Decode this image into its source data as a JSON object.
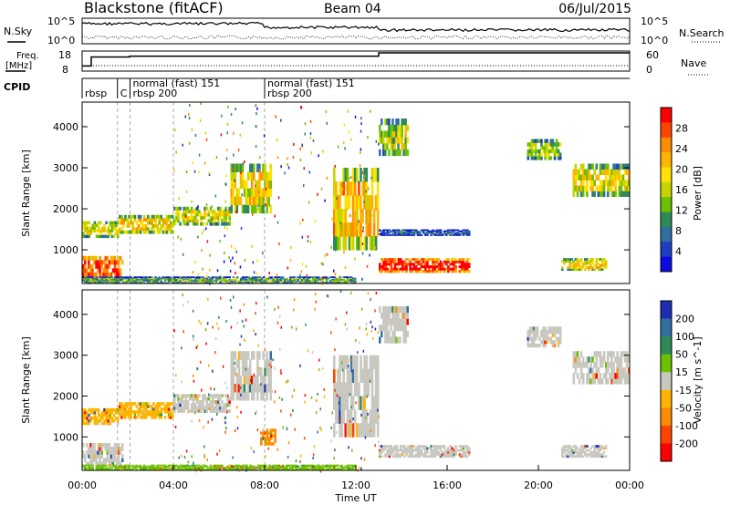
{
  "header": {
    "station": "Blackstone (fitACF)",
    "beam": "Beam 04",
    "date": "06/Jul/2015"
  },
  "chart_data": [
    {
      "type": "line",
      "panel": "noise-search",
      "left_label": "N.Sky",
      "right_label": "N.Search",
      "left_ticks": [
        "10^5",
        "10^0"
      ],
      "right_ticks": [
        "10^5",
        "10^0"
      ]
    },
    {
      "type": "line",
      "panel": "frequency-nave",
      "left_label_line1": "Freq.",
      "left_label_line2": "[MHz]",
      "right_label": "Nave",
      "left_ticks": [
        "18",
        "8"
      ],
      "right_ticks": [
        "60",
        "0"
      ],
      "freq_steps": [
        {
          "x0": 0.0,
          "x1": 0.4,
          "level": 0.2
        },
        {
          "x0": 0.4,
          "x1": 2.08,
          "level": 0.75
        },
        {
          "x0": 2.08,
          "x1": 8.0,
          "level": 0.8
        },
        {
          "x0": 8.0,
          "x1": 13.0,
          "level": 0.8
        },
        {
          "x0": 13.0,
          "x1": 24.0,
          "level": 1.0
        }
      ]
    },
    {
      "type": "table",
      "panel": "cpid",
      "label": "CPID",
      "entries": [
        {
          "time": 0.0,
          "text": "rbsp",
          "row": 2
        },
        {
          "time": 1.55,
          "text": "C",
          "row": 2
        },
        {
          "time": 2.1,
          "text": "normal (fast) 151",
          "row": 1
        },
        {
          "time": 2.1,
          "text": "rbsp 200",
          "row": 2
        },
        {
          "time": 8.0,
          "text": "normal (fast)  151",
          "row": 1
        },
        {
          "time": 8.0,
          "text": "rbsp 200",
          "row": 2
        }
      ],
      "boundaries": [
        0.0,
        1.55,
        2.1,
        8.0
      ]
    },
    {
      "type": "heatmap",
      "panel": "power",
      "title": "Power [dB]",
      "ylabel": "Slant Range [km]",
      "ylim": [
        180,
        4600
      ],
      "yticks": [
        1000,
        2000,
        3000,
        4000
      ],
      "colorbar_ticks": [
        "28",
        "24",
        "20",
        "16",
        "12",
        "8",
        "4"
      ],
      "colorbar_colors": [
        "#ff0000",
        "#ff4400",
        "#ff8c00",
        "#ffb400",
        "#ffe000",
        "#c8d400",
        "#6cc000",
        "#2e8b57",
        "#2f6fa0",
        "#1d3fc0",
        "#0a0ae0"
      ],
      "bands": [
        {
          "x0": 0.0,
          "x1": 1.6,
          "y0": 1300,
          "y1": 1700,
          "level": 0.55
        },
        {
          "x0": 1.6,
          "x1": 4.0,
          "y0": 1400,
          "y1": 1850,
          "level": 0.6
        },
        {
          "x0": 4.0,
          "x1": 6.5,
          "y0": 1600,
          "y1": 2050,
          "level": 0.55
        },
        {
          "x0": 6.5,
          "x1": 8.3,
          "y0": 1900,
          "y1": 3100,
          "level": 0.6
        },
        {
          "x0": 0.0,
          "x1": 1.8,
          "y0": 250,
          "y1": 850,
          "level": 0.85
        },
        {
          "x0": 11.0,
          "x1": 13.0,
          "y0": 1000,
          "y1": 3000,
          "level": 0.65
        },
        {
          "x0": 13.0,
          "x1": 17.0,
          "y0": 450,
          "y1": 800,
          "level": 0.95
        },
        {
          "x0": 13.0,
          "x1": 17.0,
          "y0": 1350,
          "y1": 1500,
          "level": 0.2
        },
        {
          "x0": 13.0,
          "x1": 14.3,
          "y0": 3300,
          "y1": 4200,
          "level": 0.5
        },
        {
          "x0": 21.5,
          "x1": 24.0,
          "y0": 2300,
          "y1": 3100,
          "level": 0.55
        },
        {
          "x0": 19.5,
          "x1": 21.0,
          "y0": 3200,
          "y1": 3700,
          "level": 0.45
        },
        {
          "x0": 21.0,
          "x1": 23.0,
          "y0": 500,
          "y1": 800,
          "level": 0.6
        },
        {
          "x0": 0.0,
          "x1": 12.0,
          "y0": 180,
          "y1": 350,
          "level": 0.35
        }
      ]
    },
    {
      "type": "heatmap",
      "panel": "velocity",
      "title": "Velocity [m s^-1]",
      "ylabel": "Slant Range [km]",
      "xlabel": "Time UT",
      "ylim": [
        180,
        4600
      ],
      "yticks": [
        1000,
        2000,
        3000,
        4000
      ],
      "xticks": [
        "00:00",
        "04:00",
        "08:00",
        "12:00",
        "16:00",
        "20:00",
        "00:00"
      ],
      "xlim": [
        0,
        24
      ],
      "colorbar_ticks": [
        "200",
        "100",
        "50",
        "15",
        "-15",
        "-50",
        "-100",
        "-200"
      ],
      "colorbar_colors": [
        "#1d2fb0",
        "#2f6fa0",
        "#2e8b57",
        "#6cc000",
        "#c8c8c0",
        "#ffb400",
        "#ff8c00",
        "#ff4400",
        "#ff0000"
      ],
      "bands": [
        {
          "x0": 0.0,
          "x1": 1.6,
          "y0": 1300,
          "y1": 1700,
          "color": "#ffb400"
        },
        {
          "x0": 1.6,
          "x1": 4.0,
          "y0": 1450,
          "y1": 1850,
          "color": "#ffb400"
        },
        {
          "x0": 4.0,
          "x1": 6.5,
          "y0": 1600,
          "y1": 2050,
          "color": "#c8c8c0"
        },
        {
          "x0": 6.5,
          "x1": 8.3,
          "y0": 1900,
          "y1": 3100,
          "color": "#c8c8c0"
        },
        {
          "x0": 0.0,
          "x1": 1.8,
          "y0": 300,
          "y1": 850,
          "color": "#c8c8c0"
        },
        {
          "x0": 11.0,
          "x1": 13.0,
          "y0": 1000,
          "y1": 3000,
          "color": "#c8c8c0"
        },
        {
          "x0": 13.0,
          "x1": 17.0,
          "y0": 500,
          "y1": 800,
          "color": "#c8c8c0"
        },
        {
          "x0": 13.0,
          "x1": 14.3,
          "y0": 3300,
          "y1": 4200,
          "color": "#c8c8c0"
        },
        {
          "x0": 21.5,
          "x1": 24.0,
          "y0": 2300,
          "y1": 3100,
          "color": "#c8c8c0"
        },
        {
          "x0": 19.5,
          "x1": 21.0,
          "y0": 3200,
          "y1": 3700,
          "color": "#c8c8c0"
        },
        {
          "x0": 21.0,
          "x1": 23.0,
          "y0": 500,
          "y1": 800,
          "color": "#c8c8c0"
        },
        {
          "x0": 7.8,
          "x1": 8.5,
          "y0": 800,
          "y1": 1200,
          "color": "#ff8c00"
        },
        {
          "x0": 0.0,
          "x1": 12.0,
          "y0": 180,
          "y1": 320,
          "color": "#6cc000"
        }
      ]
    }
  ]
}
